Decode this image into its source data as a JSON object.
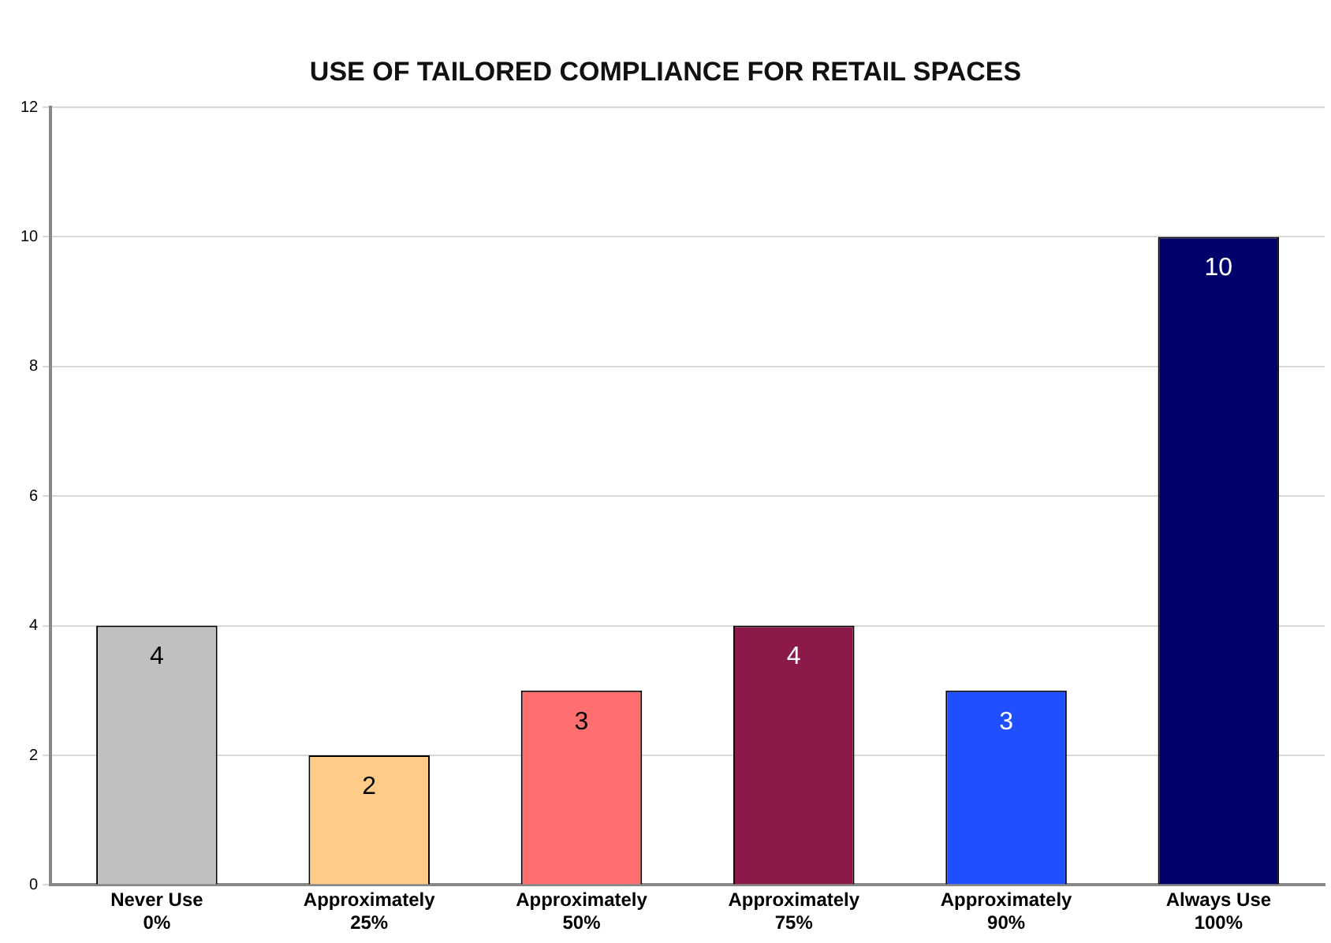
{
  "chart_data": {
    "type": "bar",
    "title": "USE OF TAILORED COMPLIANCE FOR RETAIL SPACES",
    "categories": [
      "Never Use 0%",
      "Approximately 25%",
      "Approximately 50%",
      "Approximately 75%",
      "Approximately 90%",
      "Always Use 100%"
    ],
    "values": [
      4,
      2,
      3,
      4,
      3,
      10
    ],
    "colors": [
      "#c0c0c0",
      "#ffcc88",
      "#ff6f6f",
      "#8b1a4a",
      "#1f4fff",
      "#00006b"
    ],
    "ylim": [
      0,
      12
    ],
    "yticks": [
      0,
      2,
      4,
      6,
      8,
      10,
      12
    ],
    "grid": "y",
    "data_labels": true,
    "legend": false
  }
}
